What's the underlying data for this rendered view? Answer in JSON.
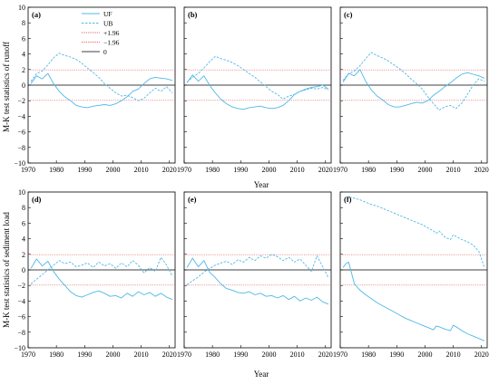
{
  "figure": {
    "ylabel_top": "M-K test statistics of runoff",
    "ylabel_bottom": "M-K test statistics of sediment load",
    "xlabel": "Year"
  },
  "legend": {
    "items": [
      {
        "label": "UF",
        "style": "solid",
        "color": "#4fb8e6"
      },
      {
        "label": "UB",
        "style": "dashed",
        "color": "#4fb8e6"
      },
      {
        "label": "+1.96",
        "style": "dotted",
        "color": "#e06060"
      },
      {
        "label": "−1.96",
        "style": "dotted",
        "color": "#e06060"
      },
      {
        "label": "0",
        "style": "solid",
        "color": "#000000"
      }
    ]
  },
  "colors": {
    "series": "#4fb8e6",
    "threshold": "#e06060",
    "zero": "#000000"
  },
  "chart_data": [
    {
      "type": "line",
      "panel": "(a)",
      "xlim": [
        1970,
        2022
      ],
      "ylim": [
        -10,
        10
      ],
      "xticks": [
        1970,
        1980,
        1990,
        2000,
        2010,
        2020
      ],
      "yticks": [
        -10,
        -8,
        -6,
        -4,
        -2,
        0,
        2,
        4,
        6,
        8,
        10
      ],
      "hlines": [
        1.96,
        -1.96,
        0
      ],
      "series": [
        {
          "name": "UF",
          "x": [
            1971,
            1973,
            1975,
            1977,
            1979,
            1981,
            1983,
            1985,
            1987,
            1989,
            1991,
            1993,
            1995,
            1997,
            1999,
            2001,
            2003,
            2005,
            2007,
            2009,
            2011,
            2013,
            2015,
            2017,
            2019,
            2021
          ],
          "y": [
            0.2,
            1.2,
            0.8,
            1.5,
            0.2,
            -0.8,
            -1.5,
            -2.0,
            -2.6,
            -2.8,
            -2.9,
            -2.7,
            -2.6,
            -2.5,
            -2.6,
            -2.4,
            -2.0,
            -1.5,
            -0.8,
            -0.5,
            0.2,
            0.8,
            1.0,
            0.9,
            0.8,
            0.6
          ]
        },
        {
          "name": "UB",
          "x": [
            1971,
            1973,
            1975,
            1977,
            1979,
            1981,
            1983,
            1985,
            1987,
            1989,
            1991,
            1993,
            1995,
            1997,
            1999,
            2001,
            2003,
            2005,
            2007,
            2009,
            2011,
            2013,
            2015,
            2017,
            2019,
            2021
          ],
          "y": [
            0.5,
            1.5,
            1.8,
            2.6,
            3.5,
            4.1,
            3.8,
            3.6,
            3.3,
            2.8,
            2.2,
            1.6,
            1.0,
            0.2,
            -0.4,
            -1.0,
            -1.4,
            -1.3,
            -1.6,
            -2.0,
            -1.7,
            -1.0,
            -0.4,
            -0.8,
            -0.2,
            -1.0
          ]
        }
      ]
    },
    {
      "type": "line",
      "panel": "(b)",
      "xlim": [
        1970,
        2022
      ],
      "ylim": [
        -10,
        10
      ],
      "xticks": [
        1970,
        1980,
        1990,
        2000,
        2010,
        2020
      ],
      "hlines": [
        1.96,
        -1.96,
        0
      ],
      "series": [
        {
          "name": "UF",
          "x": [
            1971,
            1973,
            1975,
            1977,
            1979,
            1981,
            1983,
            1985,
            1987,
            1989,
            1991,
            1993,
            1995,
            1997,
            1999,
            2001,
            2003,
            2005,
            2007,
            2009,
            2011,
            2013,
            2015,
            2017,
            2019,
            2021
          ],
          "y": [
            0.3,
            1.3,
            0.5,
            1.2,
            0.0,
            -1.0,
            -1.8,
            -2.4,
            -2.8,
            -3.0,
            -3.1,
            -2.9,
            -2.8,
            -2.7,
            -2.9,
            -3.0,
            -2.9,
            -2.6,
            -2.0,
            -1.2,
            -0.8,
            -0.5,
            -0.3,
            -0.2,
            0.0,
            -0.5
          ]
        },
        {
          "name": "UB",
          "x": [
            1971,
            1973,
            1975,
            1977,
            1979,
            1981,
            1983,
            1985,
            1987,
            1989,
            1991,
            1993,
            1995,
            1997,
            1999,
            2001,
            2003,
            2005,
            2007,
            2009,
            2011,
            2013,
            2015,
            2017,
            2019,
            2021
          ],
          "y": [
            0.4,
            1.0,
            1.5,
            2.2,
            3.0,
            3.7,
            3.4,
            3.2,
            2.9,
            2.5,
            2.0,
            1.5,
            1.0,
            0.4,
            -0.2,
            -0.8,
            -1.2,
            -1.8,
            -1.4,
            -1.2,
            -0.8,
            -0.6,
            -0.4,
            -0.5,
            -0.3,
            -0.6
          ]
        }
      ]
    },
    {
      "type": "line",
      "panel": "(c)",
      "xlim": [
        1970,
        2022
      ],
      "ylim": [
        -10,
        10
      ],
      "xticks": [
        1970,
        1980,
        1990,
        2000,
        2010,
        2020
      ],
      "hlines": [
        1.96,
        -1.96,
        0
      ],
      "series": [
        {
          "name": "UF",
          "x": [
            1971,
            1973,
            1975,
            1977,
            1979,
            1981,
            1983,
            1985,
            1987,
            1989,
            1991,
            1993,
            1995,
            1997,
            1999,
            2001,
            2003,
            2005,
            2007,
            2009,
            2011,
            2013,
            2015,
            2017,
            2019,
            2021
          ],
          "y": [
            0.4,
            1.5,
            1.2,
            2.0,
            0.5,
            -0.6,
            -1.4,
            -1.9,
            -2.5,
            -2.8,
            -2.8,
            -2.6,
            -2.4,
            -2.2,
            -2.3,
            -2.0,
            -1.3,
            -0.8,
            -0.2,
            0.3,
            0.9,
            1.4,
            1.6,
            1.4,
            1.2,
            0.9
          ]
        },
        {
          "name": "UB",
          "x": [
            1971,
            1973,
            1975,
            1977,
            1979,
            1981,
            1983,
            1985,
            1987,
            1989,
            1991,
            1993,
            1995,
            1997,
            1999,
            2001,
            2003,
            2005,
            2007,
            2009,
            2011,
            2013,
            2015,
            2017,
            2019,
            2021
          ],
          "y": [
            0.6,
            1.5,
            1.8,
            2.5,
            3.4,
            4.2,
            3.8,
            3.5,
            3.1,
            2.6,
            2.1,
            1.5,
            0.8,
            0.2,
            -0.5,
            -1.5,
            -2.4,
            -3.2,
            -2.8,
            -2.6,
            -3.0,
            -2.3,
            -1.2,
            0.0,
            0.8,
            0.5
          ]
        }
      ]
    },
    {
      "type": "line",
      "panel": "(d)",
      "xlim": [
        1970,
        2022
      ],
      "ylim": [
        -10,
        10
      ],
      "xticks": [
        1970,
        1980,
        1990,
        2000,
        2010,
        2020
      ],
      "yticks": [
        -10,
        -8,
        -6,
        -4,
        -2,
        0,
        2,
        4,
        6,
        8,
        10
      ],
      "hlines": [
        1.96,
        -1.96,
        0
      ],
      "series": [
        {
          "name": "UF",
          "x": [
            1971,
            1973,
            1975,
            1977,
            1979,
            1981,
            1983,
            1985,
            1987,
            1989,
            1991,
            1993,
            1995,
            1997,
            1999,
            2001,
            2003,
            2005,
            2007,
            2009,
            2011,
            2013,
            2015,
            2017,
            2019,
            2021
          ],
          "y": [
            0.2,
            1.4,
            0.5,
            1.1,
            -0.2,
            -1.2,
            -2.0,
            -2.8,
            -3.3,
            -3.5,
            -3.2,
            -2.9,
            -2.7,
            -3.0,
            -3.4,
            -3.3,
            -3.6,
            -3.0,
            -3.4,
            -2.8,
            -3.2,
            -2.9,
            -3.4,
            -3.0,
            -3.5,
            -3.8
          ]
        },
        {
          "name": "UB",
          "x": [
            1971,
            1973,
            1975,
            1977,
            1979,
            1981,
            1983,
            1985,
            1987,
            1989,
            1991,
            1993,
            1995,
            1997,
            1999,
            2001,
            2003,
            2005,
            2007,
            2009,
            2011,
            2013,
            2015,
            2017,
            2019,
            2021
          ],
          "y": [
            -1.8,
            -1.2,
            -0.6,
            0.0,
            0.6,
            1.2,
            0.8,
            1.0,
            0.4,
            0.6,
            0.9,
            0.3,
            1.0,
            0.5,
            0.8,
            0.2,
            0.9,
            0.4,
            1.2,
            0.6,
            -0.4,
            0.3,
            -0.2,
            1.6,
            0.6,
            -0.8
          ]
        }
      ]
    },
    {
      "type": "line",
      "panel": "(e)",
      "xlim": [
        1970,
        2022
      ],
      "ylim": [
        -10,
        10
      ],
      "xticks": [
        1970,
        1980,
        1990,
        2000,
        2010,
        2020
      ],
      "hlines": [
        1.96,
        -1.96,
        0
      ],
      "series": [
        {
          "name": "UF",
          "x": [
            1971,
            1973,
            1975,
            1977,
            1979,
            1981,
            1983,
            1985,
            1987,
            1989,
            1991,
            1993,
            1995,
            1997,
            1999,
            2001,
            2003,
            2005,
            2007,
            2009,
            2011,
            2013,
            2015,
            2017,
            2019,
            2021
          ],
          "y": [
            0.3,
            1.5,
            0.4,
            1.2,
            -0.3,
            -1.0,
            -1.8,
            -2.4,
            -2.6,
            -2.9,
            -3.0,
            -2.8,
            -3.2,
            -3.0,
            -3.4,
            -3.3,
            -3.6,
            -3.3,
            -3.8,
            -3.4,
            -4.0,
            -3.6,
            -3.9,
            -3.5,
            -4.1,
            -4.4
          ]
        },
        {
          "name": "UB",
          "x": [
            1971,
            1973,
            1975,
            1977,
            1979,
            1981,
            1983,
            1985,
            1987,
            1989,
            1991,
            1993,
            1995,
            1997,
            1999,
            2001,
            2003,
            2005,
            2007,
            2009,
            2011,
            2013,
            2015,
            2017,
            2019,
            2021
          ],
          "y": [
            -1.9,
            -1.4,
            -0.9,
            -0.3,
            0.2,
            0.6,
            0.9,
            1.1,
            0.7,
            1.3,
            1.0,
            1.6,
            1.2,
            1.8,
            1.5,
            2.0,
            1.7,
            1.2,
            1.6,
            1.0,
            1.4,
            0.6,
            -0.2,
            1.8,
            0.4,
            -1.0
          ]
        }
      ]
    },
    {
      "type": "line",
      "panel": "(f)",
      "xlim": [
        1970,
        2022
      ],
      "ylim": [
        -10,
        10
      ],
      "xticks": [
        1970,
        1980,
        1990,
        2000,
        2010,
        2020
      ],
      "hlines": [
        1.96,
        -1.96,
        0
      ],
      "series": [
        {
          "name": "UF",
          "x": [
            1971,
            1972,
            1973,
            1975,
            1977,
            1979,
            1981,
            1983,
            1985,
            1987,
            1989,
            1991,
            1993,
            1995,
            1997,
            1999,
            2001,
            2003,
            2004,
            2005,
            2007,
            2009,
            2010,
            2011,
            2013,
            2015,
            2017,
            2019,
            2021
          ],
          "y": [
            0.3,
            0.8,
            1.0,
            -1.8,
            -2.6,
            -3.2,
            -3.7,
            -4.2,
            -4.6,
            -5.0,
            -5.4,
            -5.8,
            -6.2,
            -6.5,
            -6.8,
            -7.1,
            -7.4,
            -7.7,
            -7.2,
            -7.3,
            -7.6,
            -7.8,
            -7.1,
            -7.3,
            -7.8,
            -8.2,
            -8.5,
            -8.8,
            -9.1
          ]
        },
        {
          "name": "UB",
          "x": [
            1972,
            1973,
            1975,
            1977,
            1979,
            1981,
            1983,
            1985,
            1987,
            1989,
            1991,
            1993,
            1995,
            1997,
            1999,
            2001,
            2003,
            2004,
            2005,
            2006,
            2007,
            2009,
            2010,
            2011,
            2013,
            2015,
            2017,
            2019,
            2021
          ],
          "y": [
            9.3,
            9.4,
            9.2,
            9.0,
            8.7,
            8.4,
            8.2,
            7.9,
            7.6,
            7.3,
            7.0,
            6.7,
            6.4,
            6.1,
            5.8,
            5.4,
            5.0,
            4.7,
            5.0,
            4.6,
            4.2,
            3.9,
            4.5,
            4.3,
            3.9,
            3.6,
            3.2,
            2.4,
            0.3
          ]
        }
      ]
    }
  ]
}
